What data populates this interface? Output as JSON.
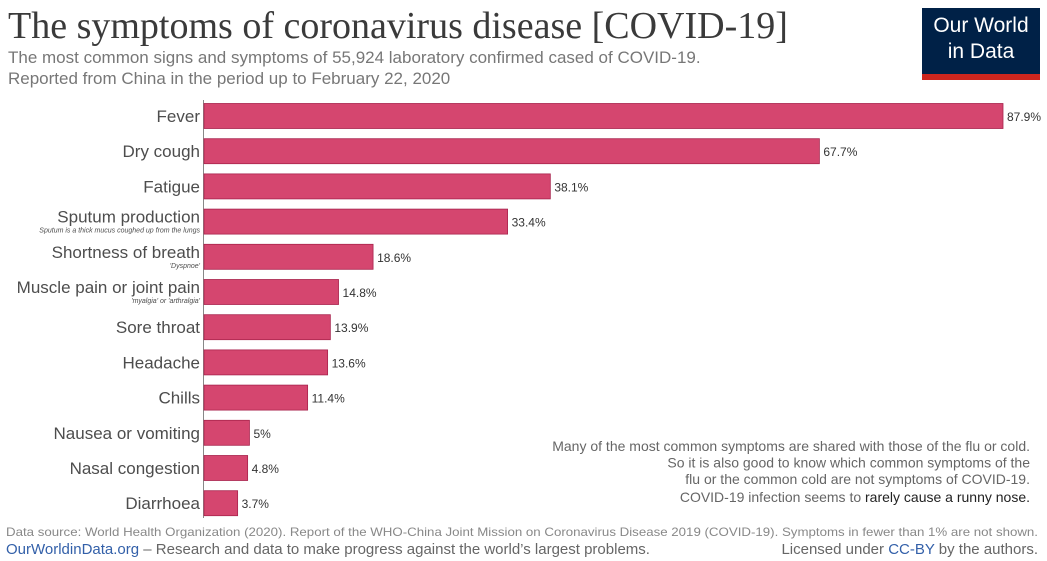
{
  "chart_data": {
    "type": "bar",
    "orientation": "horizontal",
    "title": "The symptoms of coronavirus disease [COVID-19]",
    "subtitle": [
      "The most common signs and symptoms of 55,924 laboratory confirmed cased of COVID-19.",
      "Reported from China in the period up to February 22, 2020"
    ],
    "logo": [
      "Our World",
      "in Data"
    ],
    "categories": [
      "Fever",
      "Dry cough",
      "Fatigue",
      "Sputum production",
      "Shortness of breath",
      "Muscle pain or joint pain",
      "Sore throat",
      "Headache",
      "Chills",
      "Nausea or vomiting",
      "Nasal congestion",
      "Diarrhoea"
    ],
    "category_notes": [
      null,
      null,
      null,
      "Sputum is a thick mucus coughed up from the lungs",
      "'Dyspnoe'",
      "'myalgia' or 'arthralgia'",
      null,
      null,
      null,
      null,
      null,
      null
    ],
    "values": [
      87.9,
      67.7,
      38.1,
      33.4,
      18.6,
      14.8,
      13.9,
      13.6,
      11.4,
      5,
      4.8,
      3.7
    ],
    "value_labels": [
      "87.9%",
      "67.7%",
      "38.1%",
      "33.4%",
      "18.6%",
      "14.8%",
      "13.9%",
      "13.6%",
      "11.4%",
      "5%",
      "4.8%",
      "3.7%"
    ],
    "color": "#d5466f",
    "annotation": {
      "lines": [
        "Many of the most common symptoms are shared with those of the flu or cold.",
        "So it is also good to know which common symptoms of the",
        "flu or the common cold are not symptoms of COVID-19."
      ],
      "last": [
        "COVID-19 infection seems to ",
        "rarely cause a runny nose."
      ]
    },
    "source": "Data source: World Health Organization (2020). Report of the WHO-China Joint Mission on Coronavirus Disease 2019 (COVID-19). Symptoms in fewer than 1% are not shown.",
    "site": "OurWorldinData.org",
    "tagline": " – Research and data to make progress against the world’s largest problems.",
    "license": [
      "Licensed under ",
      "CC-BY",
      " by the authors."
    ]
  }
}
